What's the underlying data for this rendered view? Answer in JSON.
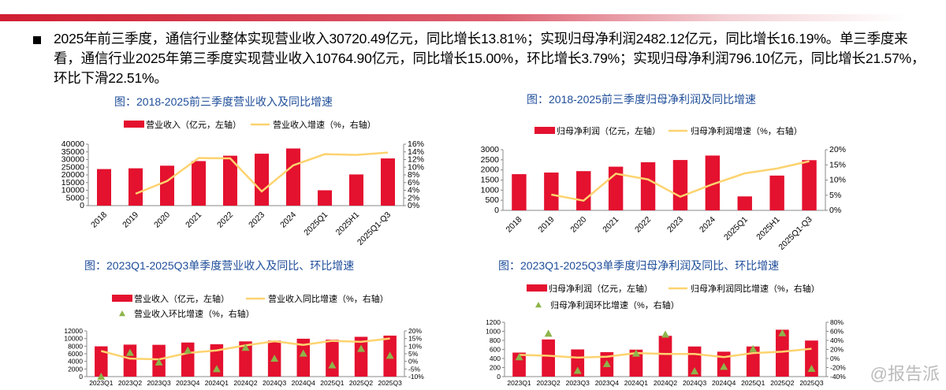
{
  "paragraph": "2025年前三季度，通信行业整体实现营业收入30720.49亿元，同比增长13.81%；实现归母净利润2482.12亿元，同比增长16.19%。单三季度来看，通信行业2025年第三季度实现营业收入10764.90亿元，同比增长15.00%，环比增长3.79%；实现归母净利润796.10亿元，同比增长21.57%，环比下滑22.51%。",
  "watermark": "@报告派",
  "colors": {
    "bar": "#e4112f",
    "line": "#fdd36f",
    "triangle": "#8db54a",
    "title": "#1f4e9a"
  },
  "chart_data": [
    {
      "type": "bar",
      "title": "图：2018-2025前三季度营业收入及同比增速",
      "categories": [
        "2018",
        "2019",
        "2020",
        "2021",
        "2022",
        "2023",
        "2024",
        "2025Q1",
        "2025H1",
        "2025Q1-Q3"
      ],
      "series": [
        {
          "name": "营业收入（亿元，左轴）",
          "kind": "bar",
          "axis": "left",
          "values": [
            23800,
            24300,
            26000,
            29000,
            32500,
            33800,
            37200,
            10000,
            20300,
            30720.49
          ]
        },
        {
          "name": "营业收入增速（%，右轴）",
          "kind": "line",
          "axis": "right",
          "values": [
            null,
            3.1,
            6.4,
            12.4,
            12.3,
            3.7,
            10.5,
            13.4,
            13.2,
            13.81
          ]
        }
      ],
      "yleft": {
        "range": [
          0,
          40000
        ],
        "ticks": [
          "0",
          "5000",
          "10000",
          "15000",
          "20000",
          "25000",
          "30000",
          "35000",
          "40000"
        ]
      },
      "yright": {
        "range": [
          0,
          16
        ],
        "ticks": [
          "0%",
          "2%",
          "4%",
          "6%",
          "8%",
          "10%",
          "12%",
          "14%",
          "16%"
        ]
      }
    },
    {
      "type": "bar",
      "title": "图：2018-2025前三季度归母净利润及同比增速",
      "categories": [
        "2018",
        "2019",
        "2020",
        "2021",
        "2022",
        "2023",
        "2024",
        "2025Q1",
        "2025H1",
        "2025Q1-Q3"
      ],
      "series": [
        {
          "name": "归母净利润（亿元，左轴）",
          "kind": "bar",
          "axis": "left",
          "values": [
            1790,
            1870,
            1940,
            2160,
            2380,
            2490,
            2710,
            690,
            1720,
            2482.12
          ]
        },
        {
          "name": "归母净利润增速（%，右轴）",
          "kind": "line",
          "axis": "right",
          "values": [
            null,
            5.2,
            3.2,
            12.1,
            10.2,
            4.5,
            8.6,
            12.2,
            13.8,
            16.19
          ]
        }
      ],
      "yleft": {
        "range": [
          0,
          3000
        ],
        "ticks": [
          "0",
          "500",
          "1000",
          "1500",
          "2000",
          "2500",
          "3000"
        ]
      },
      "yright": {
        "range": [
          0,
          20
        ],
        "ticks": [
          "0%",
          "5%",
          "10%",
          "15%",
          "20%"
        ]
      }
    },
    {
      "type": "bar",
      "title": "图：2023Q1-2025Q3单季度营业收入及同比、环比增速",
      "categories": [
        "2023Q1",
        "2023Q2",
        "2023Q3",
        "2023Q4",
        "2024Q1",
        "2024Q2",
        "2024Q3",
        "2024Q4",
        "2025Q1",
        "2025Q2",
        "2025Q3"
      ],
      "series": [
        {
          "name": "营业收入（亿元，左轴）",
          "kind": "bar",
          "axis": "left",
          "values": [
            7950,
            8400,
            8350,
            8950,
            8500,
            9250,
            9450,
            9950,
            9700,
            10450,
            10764.9
          ]
        },
        {
          "name": "营业收入同比增速（%，右轴）",
          "kind": "line",
          "axis": "right",
          "values": [
            6.8,
            1.8,
            1.3,
            5.5,
            7.2,
            10.5,
            13.2,
            10.8,
            13.5,
            12.8,
            15.0
          ]
        },
        {
          "name": "营业收入环比增速（%，右轴）",
          "kind": "triangle",
          "axis": "right",
          "values": [
            -10,
            5.7,
            -0.6,
            7.2,
            -5,
            9.0,
            1.8,
            5.2,
            -2.5,
            8.3,
            3.79
          ]
        }
      ],
      "yleft": {
        "range": [
          0,
          12000
        ],
        "ticks": [
          "0",
          "2000",
          "4000",
          "6000",
          "8000",
          "10000",
          "12000"
        ]
      },
      "yright": {
        "range": [
          -10,
          20
        ],
        "ticks": [
          "-10%",
          "-5%",
          "0%",
          "5%",
          "10%",
          "15%",
          "20%"
        ]
      }
    },
    {
      "type": "bar",
      "title": "图：2023Q1-2025Q3单季度归母净利润及同比、环比增速",
      "categories": [
        "2023Q1",
        "2023Q2",
        "2023Q3",
        "2023Q4",
        "2024Q1",
        "2024Q2",
        "2024Q3",
        "2024Q4",
        "2025Q1",
        "2025Q2",
        "2025Q3"
      ],
      "series": [
        {
          "name": "归母净利润（亿元，左轴）",
          "kind": "bar",
          "axis": "left",
          "values": [
            530,
            820,
            600,
            540,
            595,
            900,
            665,
            550,
            665,
            1035,
            796.1
          ]
        },
        {
          "name": "归母净利润同比增速（%，右轴）",
          "kind": "line",
          "axis": "right",
          "values": [
            8,
            6,
            2,
            4,
            12,
            10,
            10,
            3,
            12,
            15,
            21.57
          ]
        },
        {
          "name": "归母净利润环比增速（%，右轴）",
          "kind": "triangle",
          "axis": "right",
          "values": [
            3,
            55,
            -27,
            -12,
            11,
            53,
            -28,
            -18,
            21,
            56,
            -22.51
          ]
        }
      ],
      "yleft": {
        "range": [
          0,
          1200
        ],
        "ticks": [
          "0",
          "200",
          "400",
          "600",
          "800",
          "1000",
          "1200"
        ]
      },
      "yright": {
        "range": [
          -40,
          80
        ],
        "ticks": [
          "-40%",
          "-20%",
          "0%",
          "20%",
          "40%",
          "60%",
          "80%"
        ]
      }
    }
  ]
}
